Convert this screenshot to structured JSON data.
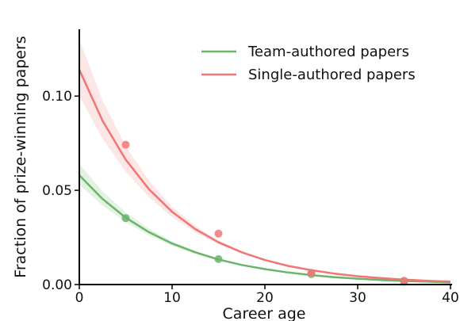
{
  "chart_data": {
    "type": "line",
    "title": "",
    "xlabel": "Career age",
    "ylabel": "Fraction of prize-winning papers",
    "xlim": [
      0,
      40
    ],
    "ylim": [
      0,
      0.135
    ],
    "xticks": [
      0,
      10,
      20,
      30,
      40
    ],
    "xtick_labels": [
      "0",
      "10",
      "20",
      "30",
      "40"
    ],
    "yticks": [
      0,
      0.05,
      0.1
    ],
    "ytick_labels": [
      "0.00",
      "0.05",
      "0.10"
    ],
    "grid": false,
    "legend_position": "top-right",
    "series": [
      {
        "name": "Team-authored papers",
        "color": "#6ab56a",
        "fit": {
          "x": [
            0,
            2.5,
            5,
            7.5,
            10,
            12.5,
            15,
            17.5,
            20,
            22.5,
            25,
            27.5,
            30,
            32.5,
            35,
            37.5,
            40
          ],
          "y": [
            0.058,
            0.0454,
            0.0355,
            0.0278,
            0.0218,
            0.0171,
            0.0133,
            0.0104,
            0.0082,
            0.0064,
            0.005,
            0.0039,
            0.0031,
            0.0024,
            0.0019,
            0.0015,
            0.0011
          ],
          "band_low": [
            0.053,
            0.0419,
            0.033,
            0.0261,
            0.0205,
            0.0162,
            0.0127,
            0.01,
            0.0079,
            0.0062,
            0.0049,
            0.0039,
            0.003,
            0.0024,
            0.0019,
            0.0015,
            0.0011
          ],
          "band_high": [
            0.064,
            0.0494,
            0.0383,
            0.0296,
            0.0229,
            0.0178,
            0.0138,
            0.0107,
            0.0083,
            0.0064,
            0.005,
            0.0038,
            0.003,
            0.0023,
            0.0018,
            0.0014,
            0.0011
          ]
        },
        "points": {
          "x": [
            5,
            15,
            25,
            35
          ],
          "y": [
            0.0352,
            0.0135,
            0.0055,
            0.0015
          ]
        }
      },
      {
        "name": "Single-authored papers",
        "color": "#f07575",
        "fit": {
          "x": [
            0,
            2.5,
            5,
            7.5,
            10,
            12.5,
            15,
            17.5,
            20,
            22.5,
            25,
            27.5,
            30,
            32.5,
            35,
            37.5,
            40
          ],
          "y": [
            0.114,
            0.0869,
            0.0663,
            0.0506,
            0.0386,
            0.0294,
            0.0224,
            0.0171,
            0.013,
            0.0099,
            0.0076,
            0.0058,
            0.0044,
            0.0034,
            0.0026,
            0.002,
            0.0015
          ],
          "band_low": [
            0.1,
            0.0774,
            0.0599,
            0.0463,
            0.0358,
            0.0277,
            0.0214,
            0.0166,
            0.0128,
            0.0099,
            0.0077,
            0.0059,
            0.0046,
            0.0036,
            0.0028,
            0.0021,
            0.0016
          ],
          "band_high": [
            0.13,
            0.0977,
            0.0734,
            0.0551,
            0.0414,
            0.0311,
            0.0234,
            0.0176,
            0.0132,
            0.0099,
            0.0075,
            0.0056,
            0.0042,
            0.0032,
            0.0024,
            0.0018,
            0.0013
          ]
        },
        "points": {
          "x": [
            5,
            15,
            25,
            35
          ],
          "y": [
            0.0742,
            0.027,
            0.0062,
            0.002
          ]
        }
      }
    ]
  }
}
